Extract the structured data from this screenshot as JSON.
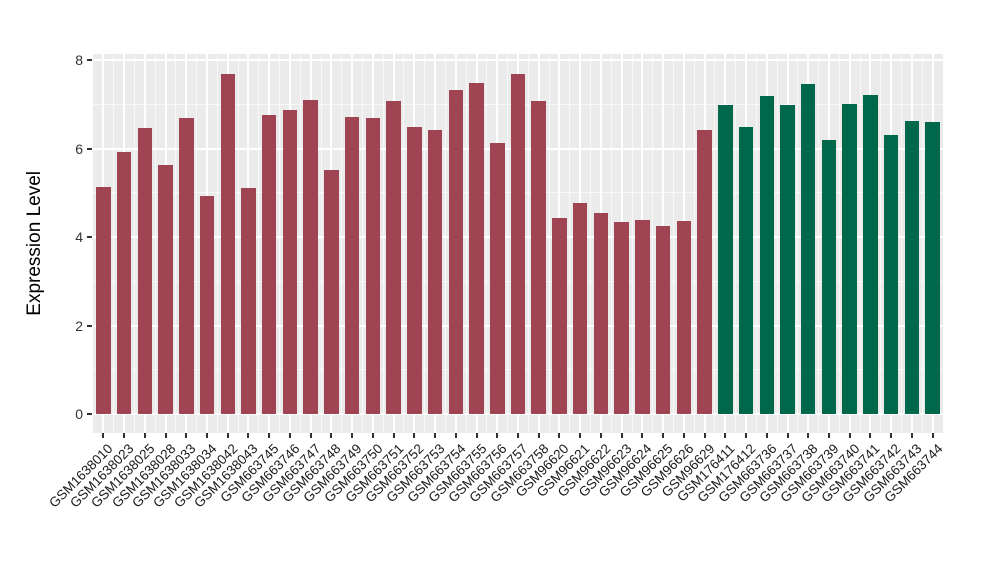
{
  "chart_data": {
    "type": "bar",
    "title": "",
    "xlabel": "",
    "ylabel": "Expression Level",
    "ylim": [
      0,
      8.2
    ],
    "yticks": [
      0,
      2,
      4,
      6,
      8
    ],
    "yminorticks": [
      1,
      3,
      5,
      7
    ],
    "grid": true,
    "legend": "none",
    "panel_background": "#EBEBEB",
    "gridline_color": "#FFFFFF",
    "tick_color": "#333333",
    "bar_width_fraction": 0.7,
    "groups": [
      {
        "name": "group-1",
        "color": "#9E4452"
      },
      {
        "name": "group-2",
        "color": "#00684A"
      }
    ],
    "bars": [
      {
        "label": "GSM1638010",
        "value": 5.12,
        "group": 0
      },
      {
        "label": "GSM1638023",
        "value": 5.92,
        "group": 0
      },
      {
        "label": "GSM1638025",
        "value": 6.46,
        "group": 0
      },
      {
        "label": "GSM1638028",
        "value": 5.62,
        "group": 0
      },
      {
        "label": "GSM1638033",
        "value": 6.68,
        "group": 0
      },
      {
        "label": "GSM1638034",
        "value": 4.92,
        "group": 0
      },
      {
        "label": "GSM1638042",
        "value": 7.68,
        "group": 0
      },
      {
        "label": "GSM1638043",
        "value": 5.1,
        "group": 0
      },
      {
        "label": "GSM663745",
        "value": 6.76,
        "group": 0
      },
      {
        "label": "GSM663746",
        "value": 6.88,
        "group": 0
      },
      {
        "label": "GSM663747",
        "value": 7.1,
        "group": 0
      },
      {
        "label": "GSM663748",
        "value": 5.51,
        "group": 0
      },
      {
        "label": "GSM663749",
        "value": 6.72,
        "group": 0
      },
      {
        "label": "GSM663750",
        "value": 6.68,
        "group": 0
      },
      {
        "label": "GSM663751",
        "value": 7.07,
        "group": 0
      },
      {
        "label": "GSM663752",
        "value": 6.49,
        "group": 0
      },
      {
        "label": "GSM663753",
        "value": 6.42,
        "group": 0
      },
      {
        "label": "GSM663754",
        "value": 7.33,
        "group": 0
      },
      {
        "label": "GSM663755",
        "value": 7.49,
        "group": 0
      },
      {
        "label": "GSM663756",
        "value": 6.13,
        "group": 0
      },
      {
        "label": "GSM663757",
        "value": 7.68,
        "group": 0
      },
      {
        "label": "GSM663758",
        "value": 7.08,
        "group": 0
      },
      {
        "label": "GSM96620",
        "value": 4.42,
        "group": 0
      },
      {
        "label": "GSM96621",
        "value": 4.76,
        "group": 0
      },
      {
        "label": "GSM96622",
        "value": 4.54,
        "group": 0
      },
      {
        "label": "GSM96623",
        "value": 4.35,
        "group": 0
      },
      {
        "label": "GSM96624",
        "value": 4.38,
        "group": 0
      },
      {
        "label": "GSM96625",
        "value": 4.25,
        "group": 0
      },
      {
        "label": "GSM96626",
        "value": 4.37,
        "group": 0
      },
      {
        "label": "GSM96629",
        "value": 6.42,
        "group": 0
      },
      {
        "label": "GSM176411",
        "value": 6.98,
        "group": 1
      },
      {
        "label": "GSM176412",
        "value": 6.48,
        "group": 1
      },
      {
        "label": "GSM663736",
        "value": 7.18,
        "group": 1
      },
      {
        "label": "GSM663737",
        "value": 6.98,
        "group": 1
      },
      {
        "label": "GSM663738",
        "value": 7.45,
        "group": 1
      },
      {
        "label": "GSM663739",
        "value": 6.2,
        "group": 1
      },
      {
        "label": "GSM663740",
        "value": 7.01,
        "group": 1
      },
      {
        "label": "GSM663741",
        "value": 7.21,
        "group": 1
      },
      {
        "label": "GSM663742",
        "value": 6.31,
        "group": 1
      },
      {
        "label": "GSM663743",
        "value": 6.62,
        "group": 1
      },
      {
        "label": "GSM663744",
        "value": 6.6,
        "group": 1
      }
    ]
  }
}
